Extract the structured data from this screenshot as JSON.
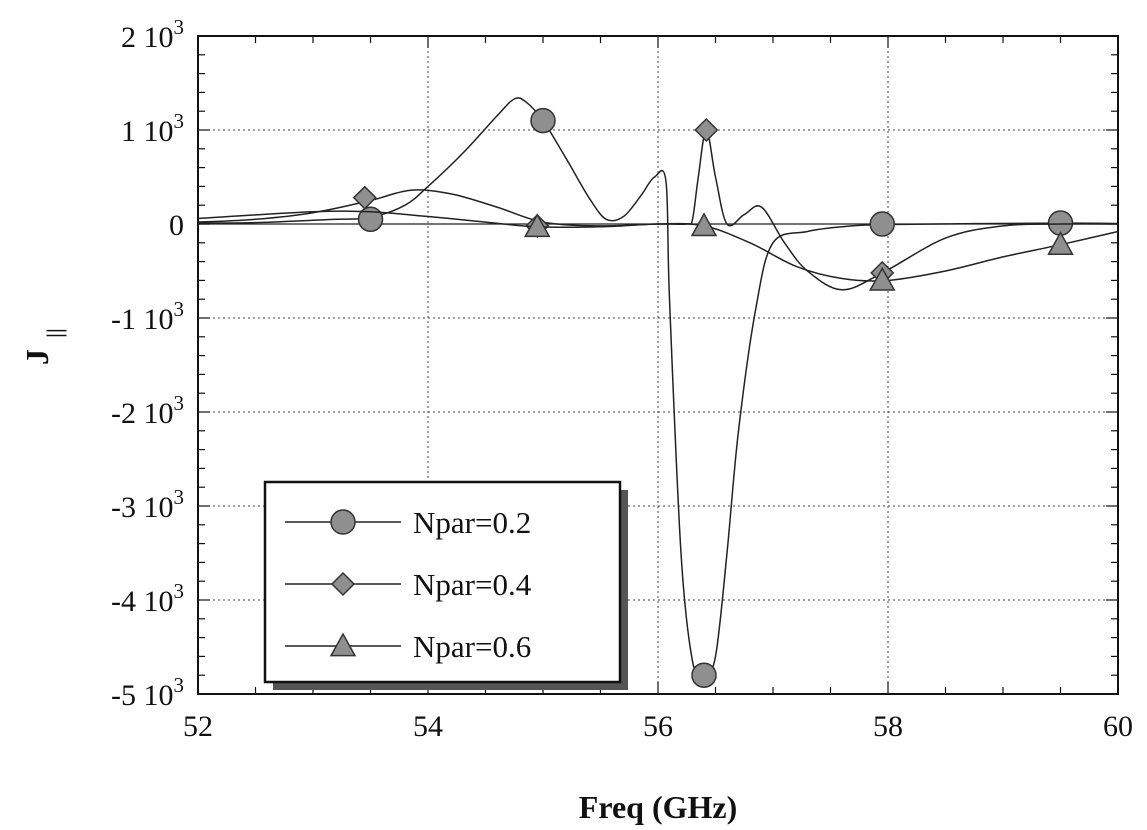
{
  "chart_data": {
    "type": "line",
    "xlabel": "Freq (GHz)",
    "ylabel": "J",
    "ylabel_subscript": "||",
    "xlim": [
      52,
      60
    ],
    "ylim": [
      -5000,
      2000
    ],
    "x_ticks": [
      52,
      54,
      56,
      58,
      60
    ],
    "x_tick_labels": [
      "52",
      "54",
      "56",
      "58",
      "60"
    ],
    "y_ticks": [
      2000,
      1000,
      0,
      -1000,
      -2000,
      -3000,
      -4000,
      -5000
    ],
    "y_tick_labels": [
      {
        "mantissa": "2",
        "base": "10",
        "exp": "3"
      },
      {
        "mantissa": "1",
        "base": "10",
        "exp": "3"
      },
      {
        "mantissa": "0",
        "base": "",
        "exp": ""
      },
      {
        "mantissa": "-1",
        "base": "10",
        "exp": "3"
      },
      {
        "mantissa": "-2",
        "base": "10",
        "exp": "3"
      },
      {
        "mantissa": "-3",
        "base": "10",
        "exp": "3"
      },
      {
        "mantissa": "-4",
        "base": "10",
        "exp": "3"
      },
      {
        "mantissa": "-5",
        "base": "10",
        "exp": "3"
      }
    ],
    "grid": true,
    "legend_position": "bottom-left",
    "series": [
      {
        "name": "Npar=0.2",
        "marker": "circle",
        "curve": [
          [
            52,
            10
          ],
          [
            52.5,
            15
          ],
          [
            53,
            40
          ],
          [
            53.2,
            50
          ],
          [
            53.5,
            70
          ],
          [
            53.8,
            200
          ],
          [
            54,
            400
          ],
          [
            54.3,
            750
          ],
          [
            54.6,
            1150
          ],
          [
            54.75,
            1330
          ],
          [
            54.85,
            1300
          ],
          [
            55,
            1100
          ],
          [
            55.2,
            700
          ],
          [
            55.4,
            280
          ],
          [
            55.55,
            50
          ],
          [
            55.7,
            80
          ],
          [
            55.85,
            300
          ],
          [
            55.97,
            500
          ],
          [
            56.07,
            450
          ],
          [
            56.1,
            -800
          ],
          [
            56.2,
            -3500
          ],
          [
            56.3,
            -4650
          ],
          [
            56.4,
            -4800
          ],
          [
            56.5,
            -4600
          ],
          [
            56.6,
            -3500
          ],
          [
            56.7,
            -2200
          ],
          [
            56.85,
            -900
          ],
          [
            57,
            -200
          ],
          [
            57.3,
            -80
          ],
          [
            57.6,
            -30
          ],
          [
            58,
            -5
          ],
          [
            59.5,
            10
          ],
          [
            60,
            5
          ]
        ],
        "markers": [
          [
            53.5,
            50
          ],
          [
            55,
            1100
          ],
          [
            56.4,
            -4800
          ],
          [
            57.95,
            0
          ],
          [
            59.5,
            10
          ]
        ]
      },
      {
        "name": "Npar=0.4",
        "marker": "diamond",
        "curve": [
          [
            52,
            20
          ],
          [
            52.5,
            50
          ],
          [
            53,
            120
          ],
          [
            53.5,
            250
          ],
          [
            53.85,
            360
          ],
          [
            54.2,
            320
          ],
          [
            54.6,
            180
          ],
          [
            55,
            20
          ],
          [
            55.5,
            -20
          ],
          [
            56,
            0
          ],
          [
            56.25,
            0
          ],
          [
            56.3,
            50
          ],
          [
            56.35,
            500
          ],
          [
            56.42,
            1000
          ],
          [
            56.5,
            500
          ],
          [
            56.6,
            0
          ],
          [
            56.75,
            100
          ],
          [
            56.9,
            180
          ],
          [
            57.1,
            -200
          ],
          [
            57.3,
            -500
          ],
          [
            57.6,
            -700
          ],
          [
            57.95,
            -520
          ],
          [
            58.5,
            -150
          ],
          [
            59,
            -20
          ],
          [
            59.5,
            0
          ],
          [
            60,
            0
          ]
        ],
        "markers": [
          [
            53.45,
            280
          ],
          [
            54.95,
            -20
          ],
          [
            56.42,
            1000
          ],
          [
            57.95,
            -520
          ]
        ]
      },
      {
        "name": "Npar=0.6",
        "marker": "triangle",
        "curve": [
          [
            52,
            60
          ],
          [
            53,
            130
          ],
          [
            53.5,
            130
          ],
          [
            54,
            80
          ],
          [
            54.5,
            20
          ],
          [
            54.95,
            -30
          ],
          [
            55.5,
            -30
          ],
          [
            56,
            0
          ],
          [
            56.4,
            -20
          ],
          [
            56.8,
            -200
          ],
          [
            57.2,
            -450
          ],
          [
            57.6,
            -580
          ],
          [
            58,
            -600
          ],
          [
            58.5,
            -500
          ],
          [
            59,
            -350
          ],
          [
            59.5,
            -220
          ],
          [
            60,
            -80
          ]
        ],
        "markers": [
          [
            54.95,
            -30
          ],
          [
            56.4,
            -20
          ],
          [
            57.95,
            -600
          ],
          [
            59.5,
            -220
          ]
        ]
      }
    ]
  }
}
